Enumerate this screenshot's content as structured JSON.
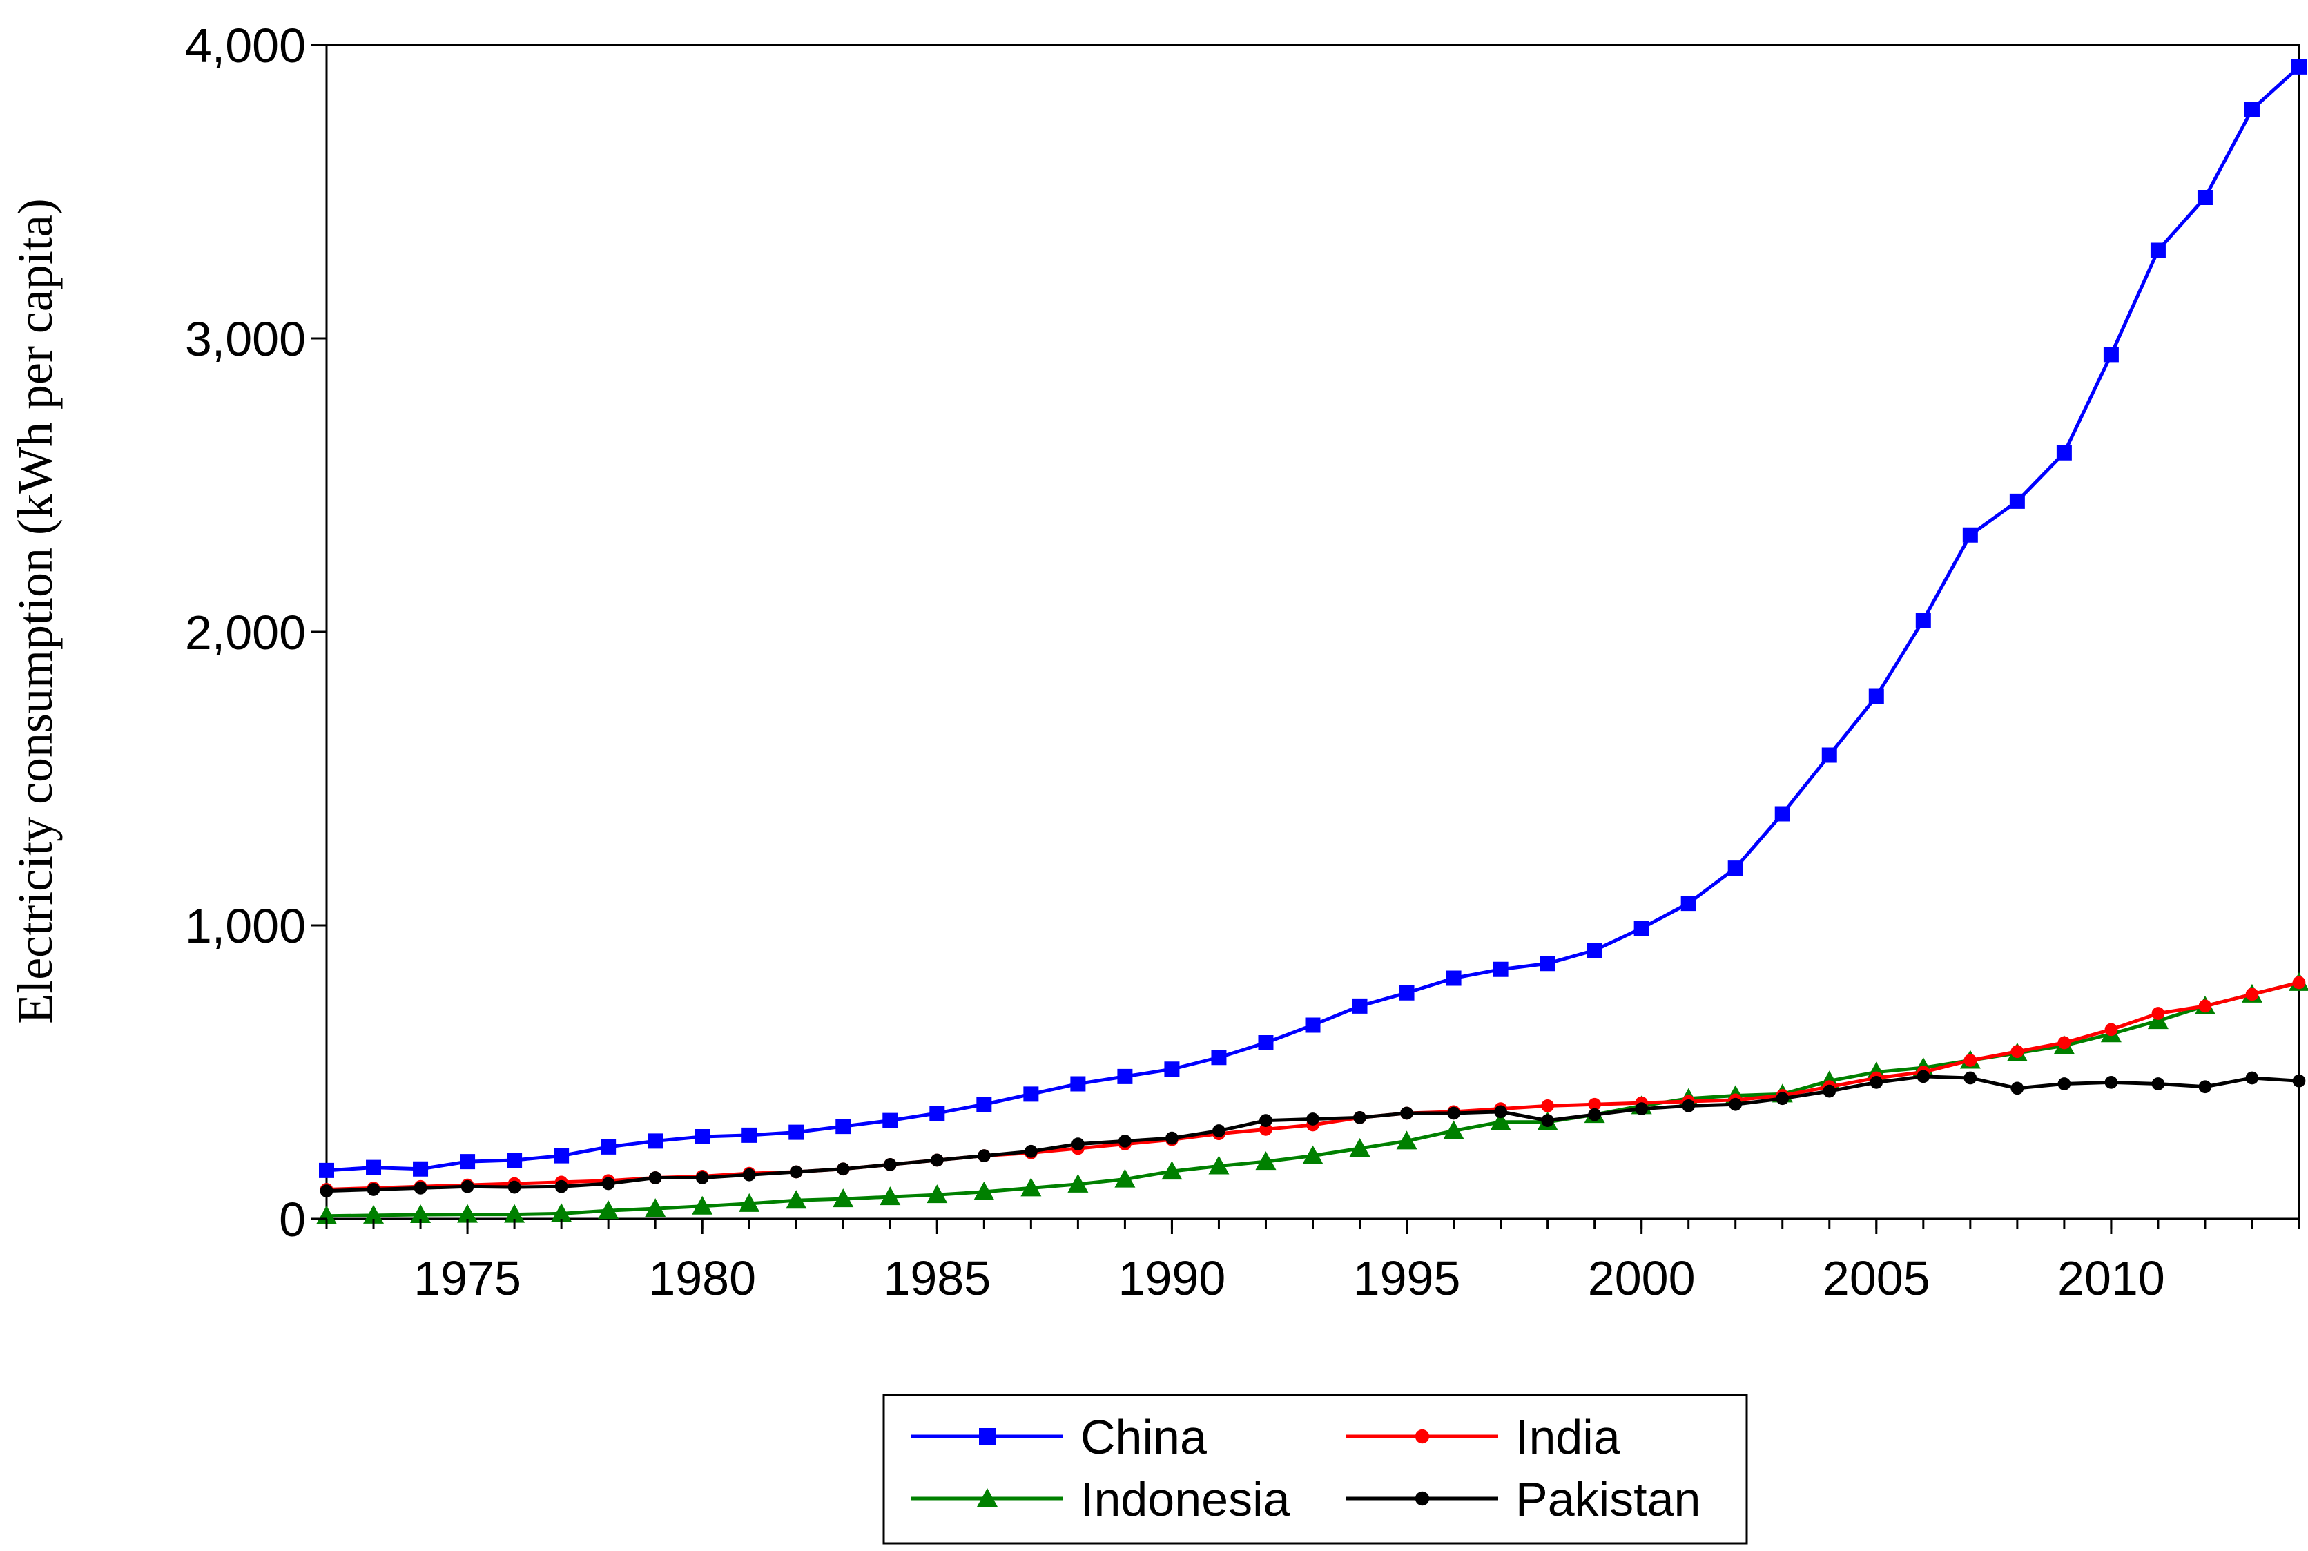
{
  "chart_data": {
    "type": "line",
    "title": "",
    "xlabel": "",
    "ylabel": "Electricity consumption (kWh per capita)",
    "xlim": [
      1972,
      2014
    ],
    "ylim": [
      0,
      4000
    ],
    "x_ticks": [
      1975,
      1980,
      1985,
      1990,
      1995,
      2000,
      2005,
      2010
    ],
    "y_ticks": [
      0,
      1000,
      2000,
      3000,
      4000
    ],
    "y_tick_labels": [
      "0",
      "1,000",
      "2,000",
      "3,000",
      "4,000"
    ],
    "grid": false,
    "legend_position": "bottom-center",
    "x": [
      1972,
      1973,
      1974,
      1975,
      1976,
      1977,
      1978,
      1979,
      1980,
      1981,
      1982,
      1983,
      1984,
      1985,
      1986,
      1987,
      1988,
      1989,
      1990,
      1991,
      1992,
      1993,
      1994,
      1995,
      1996,
      1997,
      1998,
      1999,
      2000,
      2001,
      2002,
      2003,
      2004,
      2005,
      2006,
      2007,
      2008,
      2009,
      2010,
      2011,
      2012,
      2013,
      2014
    ],
    "series": [
      {
        "name": "China",
        "color": "#0000ff",
        "marker": "square",
        "values": [
          165,
          175,
          170,
          195,
          200,
          215,
          245,
          265,
          280,
          285,
          295,
          315,
          335,
          360,
          390,
          425,
          460,
          485,
          510,
          550,
          600,
          660,
          725,
          770,
          820,
          850,
          870,
          915,
          990,
          1075,
          1195,
          1380,
          1580,
          1780,
          2040,
          2330,
          2445,
          2610,
          2945,
          3300,
          3480,
          3780,
          3925
        ]
      },
      {
        "name": "India",
        "color": "#ff0000",
        "marker": "circle",
        "values": [
          100,
          105,
          110,
          115,
          120,
          125,
          130,
          140,
          145,
          155,
          160,
          170,
          185,
          200,
          215,
          225,
          240,
          255,
          270,
          290,
          305,
          320,
          345,
          360,
          365,
          375,
          385,
          390,
          395,
          400,
          405,
          420,
          450,
          480,
          500,
          540,
          570,
          600,
          645,
          700,
          725,
          765,
          805
        ]
      },
      {
        "name": "Indonesia",
        "color": "#008000",
        "marker": "triangle",
        "values": [
          10,
          12,
          14,
          15,
          15,
          18,
          28,
          35,
          43,
          52,
          63,
          68,
          75,
          82,
          92,
          105,
          118,
          135,
          162,
          180,
          195,
          215,
          240,
          265,
          300,
          330,
          330,
          355,
          385,
          410,
          420,
          425,
          470,
          500,
          515,
          540,
          565,
          590,
          630,
          675,
          725,
          765,
          805
        ]
      },
      {
        "name": "Pakistan",
        "color": "#000000",
        "marker": "circle",
        "values": [
          95,
          100,
          105,
          110,
          108,
          110,
          120,
          140,
          140,
          150,
          160,
          170,
          185,
          200,
          215,
          230,
          255,
          265,
          275,
          300,
          335,
          340,
          345,
          360,
          360,
          365,
          335,
          355,
          375,
          385,
          390,
          410,
          435,
          465,
          485,
          480,
          445,
          460,
          465,
          460,
          450,
          480,
          470
        ]
      }
    ]
  }
}
